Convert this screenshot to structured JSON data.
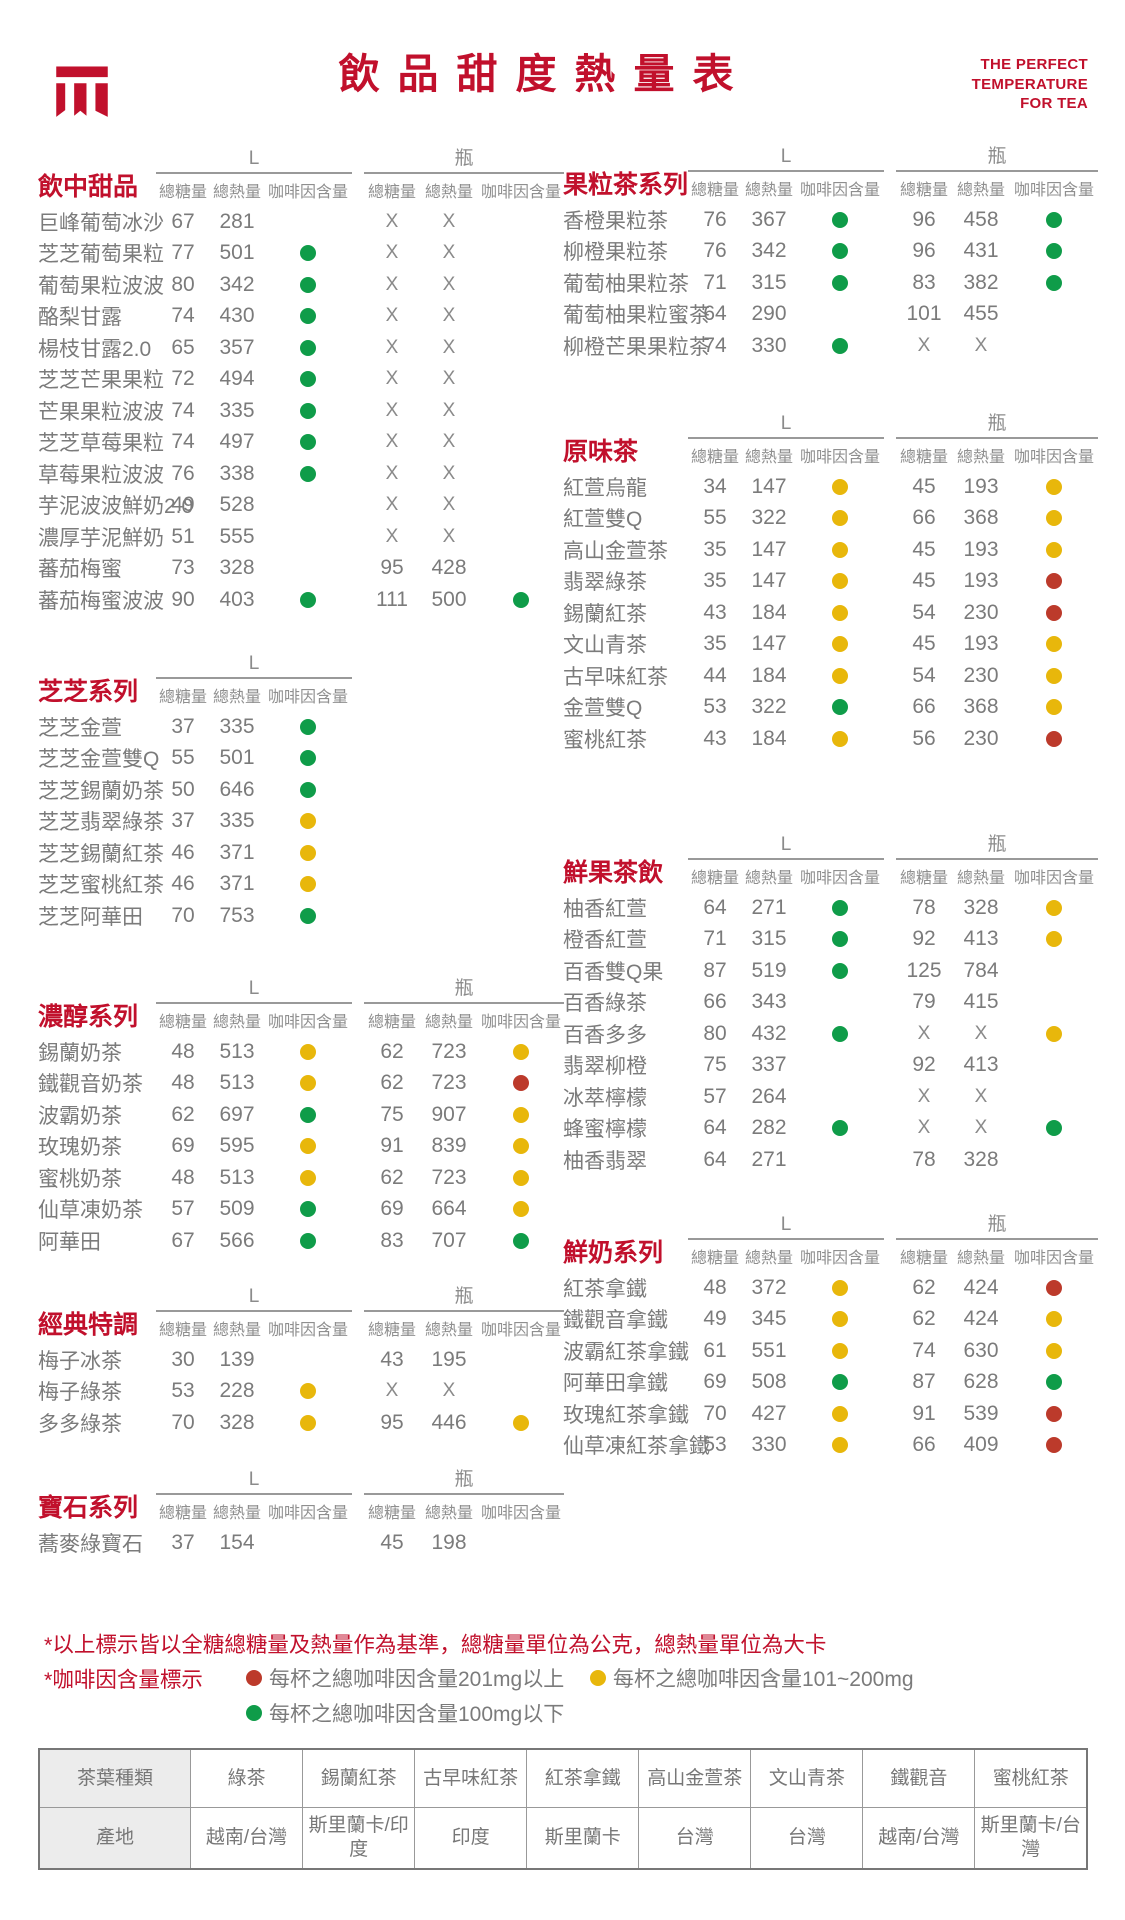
{
  "header": {
    "logo": "machi-machi-logo",
    "title": "飲品甜度熱量表",
    "tagline": [
      "THE PERFECT",
      "TEMPERATURE",
      "FOR TEA"
    ]
  },
  "colors": {
    "brand_red": "#C1102C",
    "dot_green": "#0F9C49",
    "dot_yellow": "#E8B70B",
    "dot_red": "#BC3A2B"
  },
  "columns": {
    "l": "L",
    "bottle": "瓶",
    "sub": [
      "總糖量",
      "總熱量",
      "咖啡因含量"
    ]
  },
  "sections": [
    {
      "id": "s1",
      "title": "飲中甜品",
      "column": "left",
      "has_bottle": true,
      "rows": [
        {
          "name": "巨峰葡萄冰沙",
          "l": [
            "67",
            "281",
            ""
          ],
          "b": [
            "X",
            "X",
            ""
          ]
        },
        {
          "name": "芝芝葡萄果粒",
          "l": [
            "77",
            "501",
            "G"
          ],
          "b": [
            "X",
            "X",
            ""
          ]
        },
        {
          "name": "葡萄果粒波波",
          "l": [
            "80",
            "342",
            "G"
          ],
          "b": [
            "X",
            "X",
            ""
          ]
        },
        {
          "name": "酪梨甘露",
          "l": [
            "74",
            "430",
            "G"
          ],
          "b": [
            "X",
            "X",
            ""
          ]
        },
        {
          "name": "楊枝甘露2.0",
          "l": [
            "65",
            "357",
            "G"
          ],
          "b": [
            "X",
            "X",
            ""
          ]
        },
        {
          "name": "芝芝芒果果粒",
          "l": [
            "72",
            "494",
            "G"
          ],
          "b": [
            "X",
            "X",
            ""
          ]
        },
        {
          "name": "芒果果粒波波",
          "l": [
            "74",
            "335",
            "G"
          ],
          "b": [
            "X",
            "X",
            ""
          ]
        },
        {
          "name": "芝芝草莓果粒",
          "l": [
            "74",
            "497",
            "G"
          ],
          "b": [
            "X",
            "X",
            ""
          ]
        },
        {
          "name": "草莓果粒波波",
          "l": [
            "76",
            "338",
            "G"
          ],
          "b": [
            "X",
            "X",
            ""
          ]
        },
        {
          "name": "芋泥波波鮮奶2.0",
          "l": [
            "49",
            "528",
            ""
          ],
          "b": [
            "X",
            "X",
            ""
          ]
        },
        {
          "name": "濃厚芋泥鮮奶",
          "l": [
            "51",
            "555",
            ""
          ],
          "b": [
            "X",
            "X",
            ""
          ]
        },
        {
          "name": "蕃茄梅蜜",
          "l": [
            "73",
            "328",
            ""
          ],
          "b": [
            "95",
            "428",
            ""
          ]
        },
        {
          "name": "蕃茄梅蜜波波",
          "l": [
            "90",
            "403",
            "G"
          ],
          "b": [
            "111",
            "500",
            "G"
          ]
        }
      ]
    },
    {
      "id": "s2",
      "title": "芝芝系列",
      "column": "left",
      "has_bottle": false,
      "rows": [
        {
          "name": "芝芝金萱",
          "l": [
            "37",
            "335",
            "G"
          ]
        },
        {
          "name": "芝芝金萱雙Q",
          "l": [
            "55",
            "501",
            "G"
          ]
        },
        {
          "name": "芝芝錫蘭奶茶",
          "l": [
            "50",
            "646",
            "G"
          ]
        },
        {
          "name": "芝芝翡翠綠茶",
          "l": [
            "37",
            "335",
            "Y"
          ]
        },
        {
          "name": "芝芝錫蘭紅茶",
          "l": [
            "46",
            "371",
            "Y"
          ]
        },
        {
          "name": "芝芝蜜桃紅茶",
          "l": [
            "46",
            "371",
            "Y"
          ]
        },
        {
          "name": "芝芝阿華田",
          "l": [
            "70",
            "753",
            "G"
          ]
        }
      ]
    },
    {
      "id": "s3",
      "title": "濃醇系列",
      "column": "left",
      "has_bottle": true,
      "rows": [
        {
          "name": "錫蘭奶茶",
          "l": [
            "48",
            "513",
            "Y"
          ],
          "b": [
            "62",
            "723",
            "Y"
          ]
        },
        {
          "name": "鐵觀音奶茶",
          "l": [
            "48",
            "513",
            "Y"
          ],
          "b": [
            "62",
            "723",
            "R"
          ]
        },
        {
          "name": "波霸奶茶",
          "l": [
            "62",
            "697",
            "G"
          ],
          "b": [
            "75",
            "907",
            "Y"
          ]
        },
        {
          "name": "玫瑰奶茶",
          "l": [
            "69",
            "595",
            "Y"
          ],
          "b": [
            "91",
            "839",
            "Y"
          ]
        },
        {
          "name": "蜜桃奶茶",
          "l": [
            "48",
            "513",
            "Y"
          ],
          "b": [
            "62",
            "723",
            "Y"
          ]
        },
        {
          "name": "仙草凍奶茶",
          "l": [
            "57",
            "509",
            "G"
          ],
          "b": [
            "69",
            "664",
            "Y"
          ]
        },
        {
          "name": "阿華田",
          "l": [
            "67",
            "566",
            "G"
          ],
          "b": [
            "83",
            "707",
            "G"
          ]
        }
      ]
    },
    {
      "id": "s4",
      "title": "經典特調",
      "column": "left",
      "has_bottle": true,
      "rows": [
        {
          "name": "梅子冰茶",
          "l": [
            "30",
            "139",
            ""
          ],
          "b": [
            "43",
            "195",
            ""
          ]
        },
        {
          "name": "梅子綠茶",
          "l": [
            "53",
            "228",
            "Y"
          ],
          "b": [
            "X",
            "X",
            ""
          ]
        },
        {
          "name": "多多綠茶",
          "l": [
            "70",
            "328",
            "Y"
          ],
          "b": [
            "95",
            "446",
            "Y"
          ]
        }
      ]
    },
    {
      "id": "s5",
      "title": "寶石系列",
      "column": "left",
      "has_bottle": true,
      "rows": [
        {
          "name": "蕎麥綠寶石",
          "l": [
            "37",
            "154",
            ""
          ],
          "b": [
            "45",
            "198",
            ""
          ]
        }
      ]
    },
    {
      "id": "r1",
      "title": "果粒茶系列",
      "column": "right",
      "has_bottle": true,
      "rows": [
        {
          "name": "香橙果粒茶",
          "l": [
            "76",
            "367",
            "G"
          ],
          "b": [
            "96",
            "458",
            "G"
          ]
        },
        {
          "name": "柳橙果粒茶",
          "l": [
            "76",
            "342",
            "G"
          ],
          "b": [
            "96",
            "431",
            "G"
          ]
        },
        {
          "name": "葡萄柚果粒茶",
          "l": [
            "71",
            "315",
            "G"
          ],
          "b": [
            "83",
            "382",
            "G"
          ]
        },
        {
          "name": "葡萄柚果粒蜜茶",
          "l": [
            "64",
            "290",
            ""
          ],
          "b": [
            "101",
            "455",
            ""
          ]
        },
        {
          "name": "柳橙芒果果粒茶",
          "l": [
            "74",
            "330",
            "G"
          ],
          "b": [
            "X",
            "X",
            ""
          ]
        }
      ]
    },
    {
      "id": "r2",
      "title": "原味茶",
      "column": "right",
      "has_bottle": true,
      "rows": [
        {
          "name": "紅萱烏龍",
          "l": [
            "34",
            "147",
            "Y"
          ],
          "b": [
            "45",
            "193",
            "Y"
          ]
        },
        {
          "name": "紅萱雙Q",
          "l": [
            "55",
            "322",
            "Y"
          ],
          "b": [
            "66",
            "368",
            "Y"
          ]
        },
        {
          "name": "高山金萱茶",
          "l": [
            "35",
            "147",
            "Y"
          ],
          "b": [
            "45",
            "193",
            "Y"
          ]
        },
        {
          "name": "翡翠綠茶",
          "l": [
            "35",
            "147",
            "Y"
          ],
          "b": [
            "45",
            "193",
            "R"
          ]
        },
        {
          "name": "錫蘭紅茶",
          "l": [
            "43",
            "184",
            "Y"
          ],
          "b": [
            "54",
            "230",
            "R"
          ]
        },
        {
          "name": "文山青茶",
          "l": [
            "35",
            "147",
            "Y"
          ],
          "b": [
            "45",
            "193",
            "Y"
          ]
        },
        {
          "name": "古早味紅茶",
          "l": [
            "44",
            "184",
            "Y"
          ],
          "b": [
            "54",
            "230",
            "Y"
          ]
        },
        {
          "name": "金萱雙Q",
          "l": [
            "53",
            "322",
            "G"
          ],
          "b": [
            "66",
            "368",
            "Y"
          ]
        },
        {
          "name": "蜜桃紅茶",
          "l": [
            "43",
            "184",
            "Y"
          ],
          "b": [
            "56",
            "230",
            "R"
          ]
        }
      ]
    },
    {
      "id": "r3",
      "title": "鮮果茶飲",
      "column": "right",
      "has_bottle": true,
      "rows": [
        {
          "name": "柚香紅萱",
          "l": [
            "64",
            "271",
            "G"
          ],
          "b": [
            "78",
            "328",
            "Y"
          ]
        },
        {
          "name": "橙香紅萱",
          "l": [
            "71",
            "315",
            "G"
          ],
          "b": [
            "92",
            "413",
            "Y"
          ]
        },
        {
          "name": "百香雙Q果",
          "l": [
            "87",
            "519",
            "G"
          ],
          "b": [
            "125",
            "784",
            ""
          ]
        },
        {
          "name": "百香綠茶",
          "l": [
            "66",
            "343",
            ""
          ],
          "b": [
            "79",
            "415",
            ""
          ]
        },
        {
          "name": "百香多多",
          "l": [
            "80",
            "432",
            "G"
          ],
          "b": [
            "X",
            "X",
            "Y"
          ]
        },
        {
          "name": "翡翠柳橙",
          "l": [
            "75",
            "337",
            ""
          ],
          "b": [
            "92",
            "413",
            ""
          ]
        },
        {
          "name": "冰萃檸檬",
          "l": [
            "57",
            "264",
            ""
          ],
          "b": [
            "X",
            "X",
            ""
          ]
        },
        {
          "name": "蜂蜜檸檬",
          "l": [
            "64",
            "282",
            "G"
          ],
          "b": [
            "X",
            "X",
            "G"
          ]
        },
        {
          "name": "柚香翡翠",
          "l": [
            "64",
            "271",
            ""
          ],
          "b": [
            "78",
            "328",
            ""
          ]
        }
      ]
    },
    {
      "id": "r4",
      "title": "鮮奶系列",
      "column": "right",
      "has_bottle": true,
      "rows": [
        {
          "name": "紅茶拿鐵",
          "l": [
            "48",
            "372",
            "Y"
          ],
          "b": [
            "62",
            "424",
            "R"
          ]
        },
        {
          "name": "鐵觀音拿鐵",
          "l": [
            "49",
            "345",
            "Y"
          ],
          "b": [
            "62",
            "424",
            "Y"
          ]
        },
        {
          "name": "波霸紅茶拿鐵",
          "l": [
            "61",
            "551",
            "Y"
          ],
          "b": [
            "74",
            "630",
            "Y"
          ]
        },
        {
          "name": "阿華田拿鐵",
          "l": [
            "69",
            "508",
            "G"
          ],
          "b": [
            "87",
            "628",
            "G"
          ]
        },
        {
          "name": "玫瑰紅茶拿鐵",
          "l": [
            "70",
            "427",
            "Y"
          ],
          "b": [
            "91",
            "539",
            "R"
          ]
        },
        {
          "name": "仙草凍紅茶拿鐵",
          "l": [
            "53",
            "330",
            "Y"
          ],
          "b": [
            "66",
            "409",
            "R"
          ]
        }
      ]
    }
  ],
  "notes": {
    "note1": "*以上標示皆以全糖總糖量及熱量作為基準，總糖量單位為公克，總熱量單位為大卡",
    "caffeine_label": "*咖啡因含量標示",
    "legend": [
      {
        "level": "R",
        "text": "每杯之總咖啡因含量201mg以上"
      },
      {
        "level": "Y",
        "text": "每杯之總咖啡因含量101~200mg"
      },
      {
        "level": "G",
        "text": "每杯之總咖啡因含量100mg以下"
      }
    ]
  },
  "origin_table": {
    "rows": [
      [
        "茶葉種類",
        "綠茶",
        "錫蘭紅茶",
        "古早味紅茶",
        "紅茶拿鐵",
        "高山金萱茶",
        "文山青茶",
        "鐵觀音",
        "蜜桃紅茶"
      ],
      [
        "產地",
        "越南/台灣",
        "斯里蘭卡/印度",
        "印度",
        "斯里蘭卡",
        "台灣",
        "台灣",
        "越南/台灣",
        "斯里蘭卡/台灣"
      ]
    ]
  }
}
